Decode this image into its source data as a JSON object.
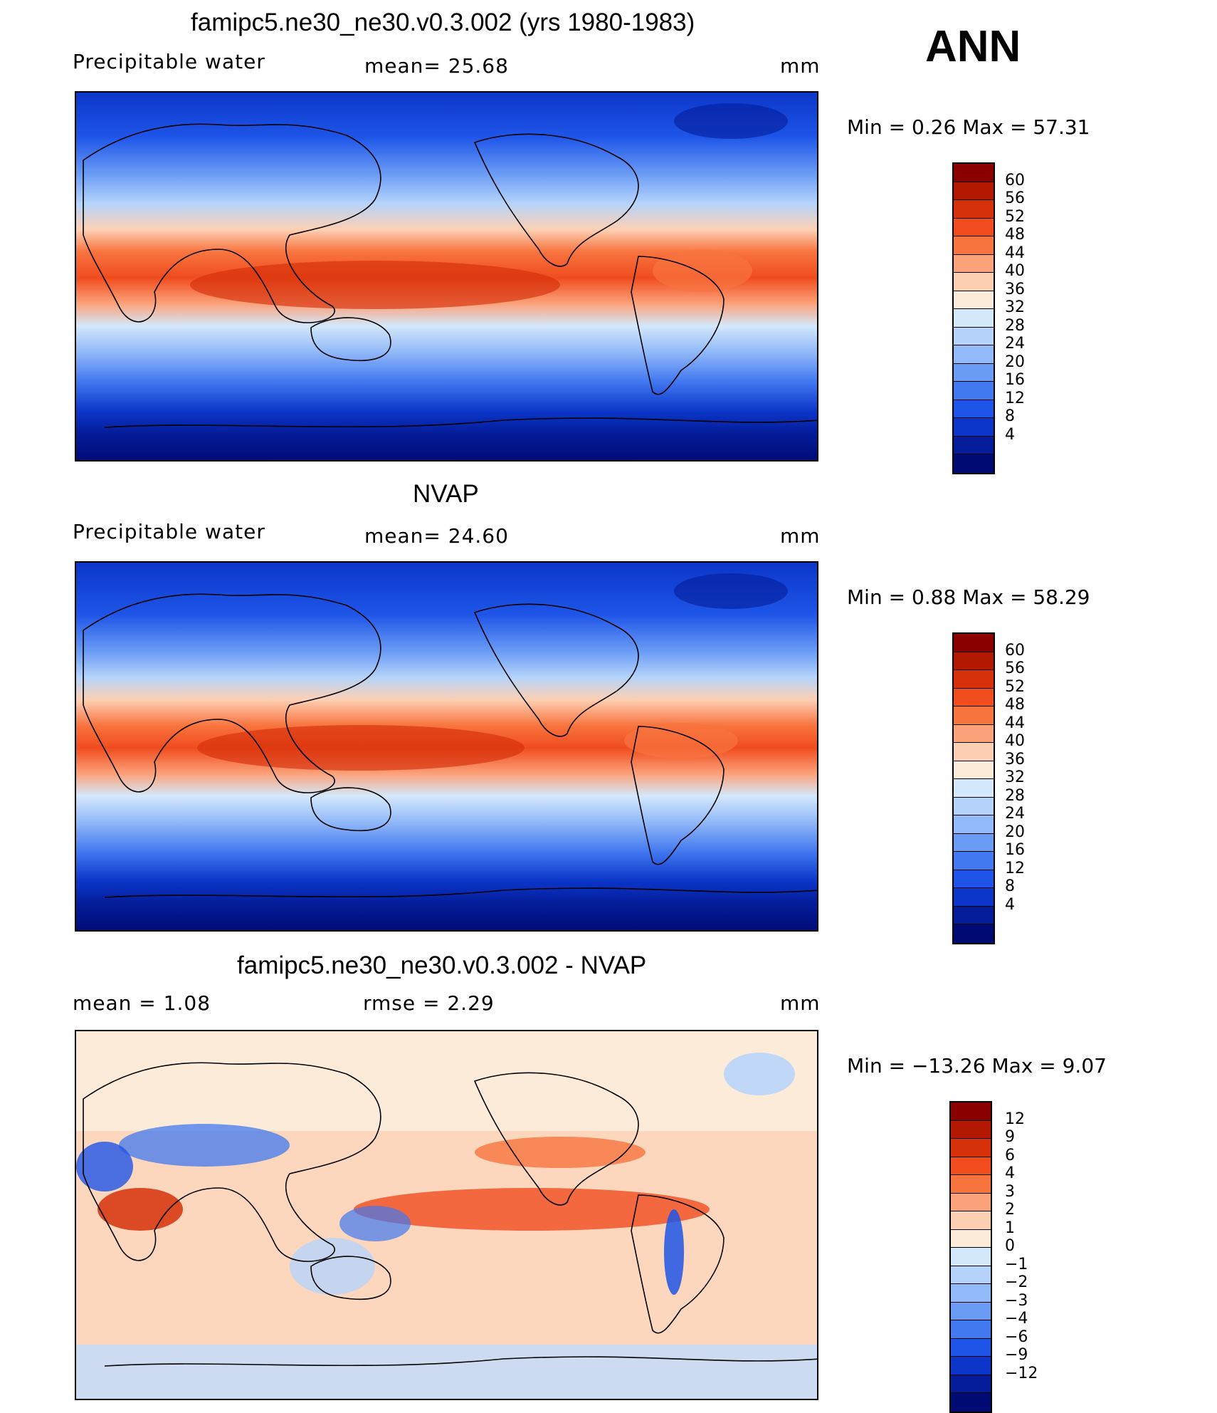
{
  "season": "ANN",
  "panels": [
    {
      "title": "famipc5.ne30_ne30.v0.3.002 (yrs 1980-1983)",
      "left_label": "Precipitable  water",
      "center_label": "mean=   25.68",
      "units": "mm",
      "minmax": "Min  =      0.26  Max  =     57.31",
      "colorbar": {
        "colors": [
          "#8a0000",
          "#b31800",
          "#d6300a",
          "#f04c1e",
          "#f8743f",
          "#fca27a",
          "#fdd0b4",
          "#fdebd9",
          "#d4e8fb",
          "#b6d4fb",
          "#92b9f8",
          "#6b9cf5",
          "#4278f0",
          "#1e55e8",
          "#0b36c9",
          "#041c9a",
          "#000a73"
        ],
        "labels": [
          "60",
          "56",
          "52",
          "48",
          "44",
          "40",
          "36",
          "32",
          "28",
          "24",
          "20",
          "16",
          "12",
          "8",
          "4"
        ]
      }
    },
    {
      "title": "NVAP",
      "left_label": "Precipitable  water",
      "center_label": "mean=   24.60",
      "units": "mm",
      "minmax": "Min  =      0.88  Max  =     58.29",
      "colorbar": {
        "colors": [
          "#8a0000",
          "#b31800",
          "#d6300a",
          "#f04c1e",
          "#f8743f",
          "#fca27a",
          "#fdd0b4",
          "#fdebd9",
          "#d4e8fb",
          "#b6d4fb",
          "#92b9f8",
          "#6b9cf5",
          "#4278f0",
          "#1e55e8",
          "#0b36c9",
          "#041c9a",
          "#000a73"
        ],
        "labels": [
          "60",
          "56",
          "52",
          "48",
          "44",
          "40",
          "36",
          "32",
          "28",
          "24",
          "20",
          "16",
          "12",
          "8",
          "4"
        ]
      }
    },
    {
      "title": "famipc5.ne30_ne30.v0.3.002 - NVAP",
      "left_label": "mean  =      1.08",
      "center_label": "rmse  =      2.29",
      "units": "mm",
      "minmax": "Min  = −13.26  Max  =      9.07",
      "colorbar": {
        "colors": [
          "#8a0000",
          "#b31800",
          "#d6300a",
          "#f04c1e",
          "#f8743f",
          "#fca27a",
          "#fdd0b4",
          "#fdebd9",
          "#d4e8fb",
          "#b6d4fb",
          "#92b9f8",
          "#6b9cf5",
          "#4278f0",
          "#1e55e8",
          "#0b36c9",
          "#041c9a",
          "#000a73"
        ],
        "labels": [
          "12",
          "9",
          "6",
          "4",
          "3",
          "2",
          "1",
          "0",
          "−1",
          "−2",
          "−3",
          "−4",
          "−6",
          "−9",
          "−12"
        ]
      }
    }
  ]
}
